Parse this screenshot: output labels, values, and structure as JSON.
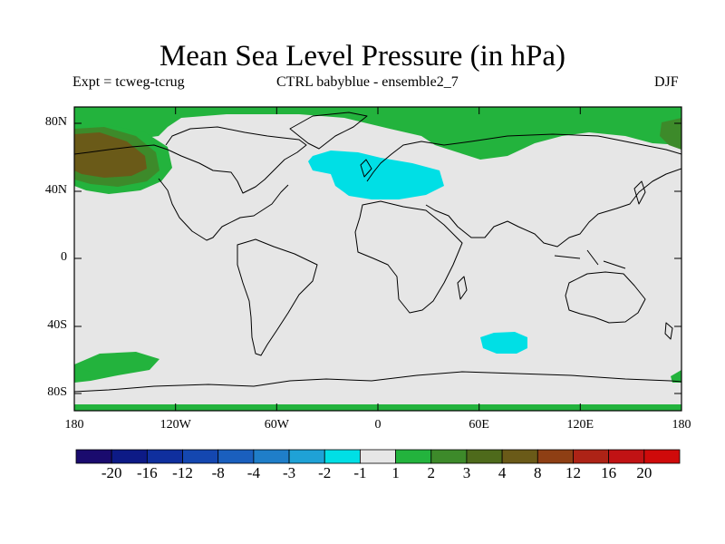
{
  "title": "Mean Sea Level Pressure (in hPa)",
  "subtitle_left": "Expt = tcweg-tcrug",
  "subtitle_center": "CTRL babyblue - ensemble2_7",
  "subtitle_right": "DJF",
  "lat_ticks": [
    "80N",
    "40N",
    "0",
    "40S",
    "80S"
  ],
  "lon_ticks": [
    "180",
    "120W",
    "60W",
    "0",
    "60E",
    "120E",
    "180"
  ],
  "colorbar": {
    "labels": [
      "-20",
      "-16",
      "-12",
      "-8",
      "-4",
      "-3",
      "-2",
      "-1",
      "1",
      "2",
      "3",
      "4",
      "8",
      "12",
      "16",
      "20"
    ],
    "colors": [
      "#1a0b6e",
      "#0d1a86",
      "#0f2f9e",
      "#1447b0",
      "#1a5fbe",
      "#1f7ec9",
      "#1fa2d6",
      "#00dfe5",
      "#e6e6e6",
      "#23b33d",
      "#3d8a2a",
      "#4e6a1b",
      "#6a5a18",
      "#8e3f14",
      "#ad2316",
      "#c11214",
      "#cf0a0a"
    ]
  },
  "colors": {
    "background": "#e6e6e6",
    "positive_weak": "#23b33d",
    "positive_medium": "#3d8a2a",
    "positive_strong": "#6a5a18",
    "negative_weak": "#00dfe5"
  }
}
